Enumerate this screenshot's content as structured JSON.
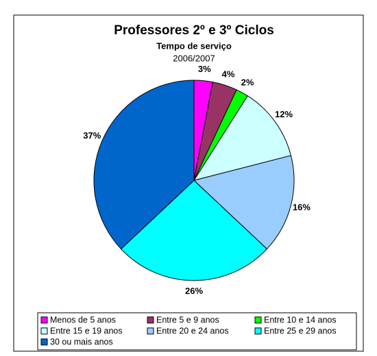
{
  "chart_data": {
    "type": "pie",
    "title": "Professores 2º e 3º Ciclos",
    "subtitle": "Tempo de serviço",
    "subtitle2": "2006/2007",
    "categories": [
      "Menos de 5 anos",
      "Entre 5 e 9 anos",
      "Entre 10 e 14 anos",
      "Entre 15 e 19 anos",
      "Entre 20 e 24 anos",
      "Entre 25 e 29 anos",
      "30 ou mais anos"
    ],
    "values": [
      3,
      4,
      2,
      12,
      16,
      26,
      37
    ],
    "value_labels": [
      "3%",
      "4%",
      "2%",
      "12%",
      "16%",
      "26%",
      "37%"
    ],
    "colors": [
      "#ff00ff",
      "#993366",
      "#00ff00",
      "#ccffff",
      "#99ccff",
      "#00ffff",
      "#0066cc"
    ],
    "legend": "bottom"
  }
}
